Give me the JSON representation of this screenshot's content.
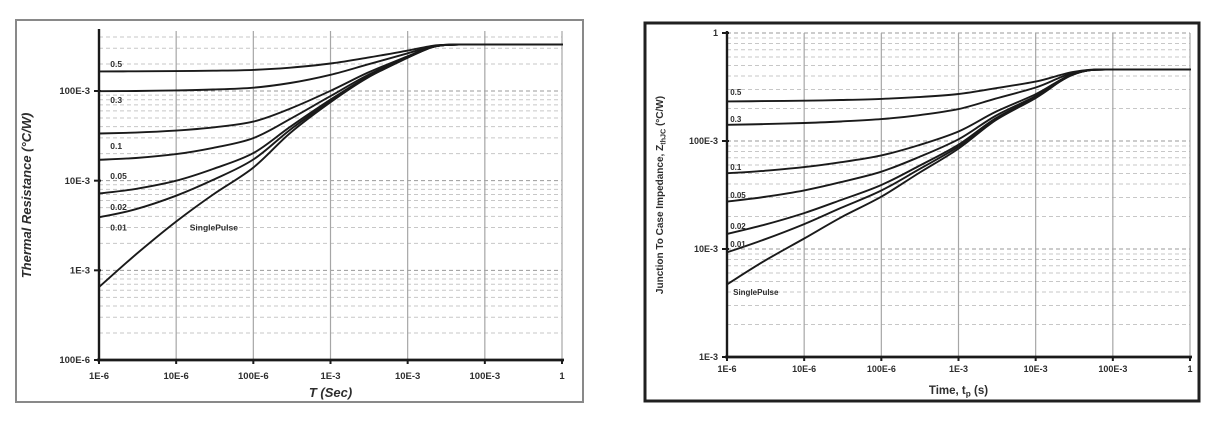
{
  "page": {
    "background": "#ffffff"
  },
  "colors": {
    "curve": "#1a1a1a",
    "axis": "#1a1a1a",
    "grid_minor": "#c7c7c7",
    "grid_major": "#999999",
    "grid_vertical": "#a6a6a6",
    "text": "#2e2e2e",
    "panel_frame_left": "#898989",
    "panel_frame_right": "#202020",
    "plot_background": "#ffffff"
  },
  "chart_data": [
    {
      "id": "thermal-resistance",
      "type": "line",
      "x_scale": "log",
      "y_scale": "log",
      "xlim": [
        1e-06,
        1
      ],
      "ylim": [
        0.0001,
        0.4668
      ],
      "xlabel": "T (Sec)",
      "xlabel_parts": [
        {
          "t": "T (Sec)"
        }
      ],
      "ylabel": "Thermal Resistance (°C/W)",
      "ylabel_parts": [
        {
          "t": "Thermal Resistance (°C/W)"
        }
      ],
      "x_ticks": [
        {
          "label": "1E-6",
          "value": 1e-06
        },
        {
          "label": "10E-6",
          "value": 1e-05
        },
        {
          "label": "100E-6",
          "value": 0.0001
        },
        {
          "label": "1E-3",
          "value": 0.001
        },
        {
          "label": "10E-3",
          "value": 0.01
        },
        {
          "label": "100E-3",
          "value": 0.1
        },
        {
          "label": "1",
          "value": 1
        }
      ],
      "y_ticks": [
        {
          "label": "100E-3",
          "value": 0.1
        },
        {
          "label": "10E-3",
          "value": 0.01
        },
        {
          "label": "1E-3",
          "value": 0.001
        },
        {
          "label": "100E-6",
          "value": 0.0001
        }
      ],
      "grid": {
        "vertical": "solid-major-decades",
        "horizontal": "dashed-log-minors"
      },
      "legend": "none",
      "steady_state_rth": 0.33,
      "duty_cycles": [
        0.5,
        0.3,
        0.1,
        0.05,
        0.02,
        0.01
      ],
      "x": [
        1e-06,
        3e-06,
        1e-05,
        3e-05,
        0.0001,
        0.0003,
        0.001,
        0.003,
        0.01,
        0.02,
        0.03,
        0.05,
        0.1,
        0.3,
        1
      ],
      "series": [
        {
          "name": "0.5",
          "values": [
            0.1653,
            0.1658,
            0.1668,
            0.1685,
            0.172,
            0.182,
            0.2025,
            0.235,
            0.2825,
            0.3175,
            0.3275,
            0.33,
            0.33,
            0.33,
            0.33
          ]
        },
        {
          "name": "0.3",
          "values": [
            0.0995,
            0.1001,
            0.1015,
            0.1039,
            0.1088,
            0.1228,
            0.1515,
            0.197,
            0.2635,
            0.3125,
            0.3265,
            0.33,
            0.33,
            0.33,
            0.33
          ]
        },
        {
          "name": "0.1",
          "values": [
            0.0336,
            0.0344,
            0.0362,
            0.0393,
            0.0456,
            0.0636,
            0.1005,
            0.159,
            0.2445,
            0.3075,
            0.3255,
            0.33,
            0.33,
            0.33,
            0.33
          ]
        },
        {
          "name": "0.05",
          "values": [
            0.0171,
            0.0179,
            0.0198,
            0.0232,
            0.0298,
            0.0488,
            0.0878,
            0.1495,
            0.2398,
            0.3063,
            0.3253,
            0.33,
            0.33,
            0.33,
            0.33
          ]
        },
        {
          "name": "0.02",
          "values": [
            0.0072,
            0.0081,
            0.01,
            0.0135,
            0.0203,
            0.0399,
            0.0801,
            0.1438,
            0.2369,
            0.3055,
            0.3251,
            0.33,
            0.33,
            0.33,
            0.33
          ]
        },
        {
          "name": "0.01",
          "values": [
            0.0039,
            0.0048,
            0.0068,
            0.0102,
            0.0172,
            0.037,
            0.0776,
            0.1419,
            0.236,
            0.3053,
            0.325,
            0.33,
            0.33,
            0.33,
            0.33
          ]
        },
        {
          "name": "SinglePulse",
          "values": [
            0.00065,
            0.0015,
            0.0035,
            0.007,
            0.014,
            0.034,
            0.075,
            0.14,
            0.235,
            0.305,
            0.325,
            0.33,
            0.33,
            0.33,
            0.33
          ]
        }
      ],
      "annotations": [
        {
          "text": "0.5",
          "t": 1.4e-06,
          "v": 0.2
        },
        {
          "text": "0.3",
          "t": 1.4e-06,
          "v": 0.0795
        },
        {
          "text": "0.1",
          "t": 1.4e-06,
          "v": 0.0244
        },
        {
          "text": "0.05",
          "t": 1.4e-06,
          "v": 0.0113
        },
        {
          "text": "0.02",
          "t": 1.4e-06,
          "v": 0.0051
        },
        {
          "text": "0.01",
          "t": 1.4e-06,
          "v": 0.003
        },
        {
          "text": "SinglePulse",
          "t": 1.5e-05,
          "v": 0.003
        }
      ]
    },
    {
      "id": "junction-to-case-impedance",
      "type": "line",
      "x_scale": "log",
      "y_scale": "log",
      "xlim": [
        1e-06,
        1
      ],
      "ylim": [
        0.001,
        1
      ],
      "xlabel": "Time, tp (s)",
      "xlabel_parts": [
        {
          "t": "Time, t"
        },
        {
          "t": "p",
          "sub": true
        },
        {
          "t": " (s)"
        }
      ],
      "ylabel": "Junction To Case Impedance, ZthJC (°C/W)",
      "ylabel_parts": [
        {
          "t": "Junction To Case Impedance, Z"
        },
        {
          "t": "thJC",
          "sub": true
        },
        {
          "t": " (°C/W)"
        }
      ],
      "x_ticks": [
        {
          "label": "1E-6",
          "value": 1e-06
        },
        {
          "label": "10E-6",
          "value": 1e-05
        },
        {
          "label": "100E-6",
          "value": 0.0001
        },
        {
          "label": "1E-3",
          "value": 0.001
        },
        {
          "label": "10E-3",
          "value": 0.01
        },
        {
          "label": "100E-3",
          "value": 0.1
        },
        {
          "label": "1",
          "value": 1
        }
      ],
      "y_ticks": [
        {
          "label": "1",
          "value": 1
        },
        {
          "label": "100E-3",
          "value": 0.1
        },
        {
          "label": "10E-3",
          "value": 0.01
        },
        {
          "label": "1E-3",
          "value": 0.001
        }
      ],
      "grid": {
        "vertical": "solid-major-decades",
        "horizontal": "dashed-log-minors"
      },
      "legend": "none",
      "steady_state_rth": 0.46,
      "duty_cycles": [
        0.5,
        0.3,
        0.1,
        0.05,
        0.02,
        0.01
      ],
      "x": [
        1e-06,
        3e-06,
        1e-05,
        3e-05,
        0.0001,
        0.0003,
        0.001,
        0.003,
        0.01,
        0.02,
        0.03,
        0.05,
        0.1,
        0.3,
        1
      ],
      "series": [
        {
          "name": "0.5",
          "values": [
            0.2324,
            0.2339,
            0.2363,
            0.2398,
            0.2453,
            0.255,
            0.2725,
            0.3075,
            0.355,
            0.405,
            0.435,
            0.456,
            0.4595,
            0.46,
            0.46
          ]
        },
        {
          "name": "0.3",
          "values": [
            0.1413,
            0.1434,
            0.1468,
            0.1517,
            0.1594,
            0.173,
            0.1975,
            0.2465,
            0.313,
            0.383,
            0.425,
            0.4544,
            0.4593,
            0.46,
            0.46
          ]
        },
        {
          "name": "0.1",
          "values": [
            0.0502,
            0.0529,
            0.0573,
            0.0636,
            0.0735,
            0.091,
            0.1225,
            0.1855,
            0.271,
            0.361,
            0.415,
            0.4528,
            0.4591,
            0.46,
            0.46
          ]
        },
        {
          "name": "0.05",
          "values": [
            0.0275,
            0.0303,
            0.0349,
            0.0416,
            0.052,
            0.0705,
            0.1038,
            0.1703,
            0.2605,
            0.3555,
            0.4125,
            0.4524,
            0.459,
            0.46,
            0.46
          ]
        },
        {
          "name": "0.02",
          "values": [
            0.0138,
            0.0167,
            0.0215,
            0.0284,
            0.0391,
            0.0582,
            0.0925,
            0.1611,
            0.2542,
            0.3522,
            0.411,
            0.4522,
            0.459,
            0.46,
            0.46
          ]
        },
        {
          "name": "0.01",
          "values": [
            0.0093,
            0.0122,
            0.017,
            0.024,
            0.0348,
            0.0541,
            0.0888,
            0.158,
            0.2521,
            0.3511,
            0.4105,
            0.4521,
            0.459,
            0.46,
            0.46
          ]
        },
        {
          "name": "SinglePulse",
          "values": [
            0.0047,
            0.0077,
            0.0125,
            0.0196,
            0.0305,
            0.05,
            0.085,
            0.155,
            0.25,
            0.35,
            0.41,
            0.452,
            0.459,
            0.46,
            0.46
          ]
        }
      ],
      "annotations": [
        {
          "text": "0.5",
          "t": 1.1e-06,
          "v": 0.284
        },
        {
          "text": "0.3",
          "t": 1.1e-06,
          "v": 0.16
        },
        {
          "text": "0.1",
          "t": 1.1e-06,
          "v": 0.0574
        },
        {
          "text": "0.05",
          "t": 1.1e-06,
          "v": 0.0316
        },
        {
          "text": "0.02",
          "t": 1.1e-06,
          "v": 0.0163
        },
        {
          "text": "0.01",
          "t": 1.1e-06,
          "v": 0.0111
        },
        {
          "text": "SinglePulse",
          "t": 1.2e-06,
          "v": 0.004
        }
      ]
    }
  ]
}
